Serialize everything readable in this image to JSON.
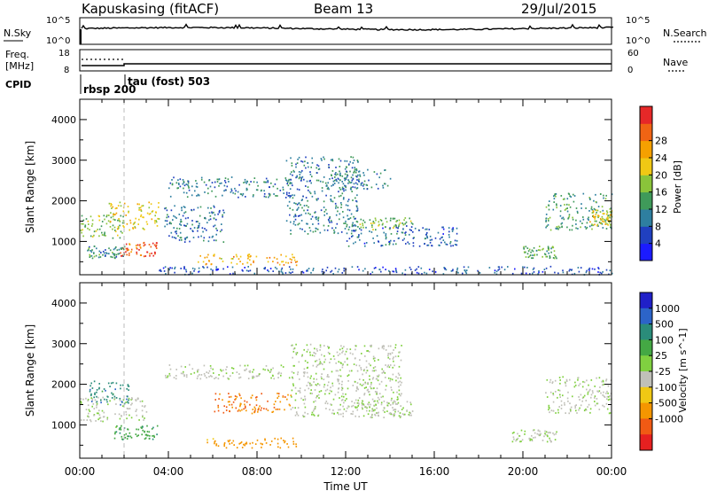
{
  "header": {
    "station": "Kapuskasing (fitACF)",
    "beam": "Beam 13",
    "date": "29/Jul/2015"
  },
  "left_labels": {
    "nsky": "N.Sky",
    "freq": "Freq.",
    "freq_unit": "[MHz]",
    "cpid": "CPID"
  },
  "right_labels": {
    "nsearch": "N.Search",
    "nave": "Nave"
  },
  "nsky_axis": {
    "top": "10^5",
    "bottom": "10^0"
  },
  "nsearch_axis": {
    "top": "10^5",
    "bottom": "10^0"
  },
  "freq_axis": {
    "top": "18",
    "bottom": "8"
  },
  "nave_axis": {
    "top": "60",
    "bottom": "0"
  },
  "cpid_labels": {
    "first": "rbsp 200",
    "second": "tau (fost) 503"
  },
  "x_axis": {
    "label": "Time UT",
    "ticks": [
      "00:00",
      "04:00",
      "08:00",
      "12:00",
      "16:00",
      "20:00",
      "00:00"
    ]
  },
  "power_panel": {
    "ylabel": "Slant Range [km]",
    "yticks": [
      "1000",
      "2000",
      "3000",
      "4000"
    ],
    "colorbar_label": "Power [dB]",
    "colorbar_ticks": [
      "4",
      "8",
      "12",
      "16",
      "20",
      "24",
      "28"
    ],
    "colorbar_colors": [
      "#1b1bff",
      "#2040c0",
      "#2e7fa0",
      "#3f9a5a",
      "#8ac43a",
      "#f0c814",
      "#f5a000",
      "#f06414",
      "#e62828"
    ]
  },
  "velocity_panel": {
    "ylabel": "Slant Range [km]",
    "yticks": [
      "1000",
      "2000",
      "3000",
      "4000"
    ],
    "colorbar_label": "Velocity [m s^-1]",
    "colorbar_ticks": [
      "1000",
      "500",
      "100",
      "25",
      "-25",
      "-100",
      "-500",
      "-1000"
    ],
    "colorbar_colors": [
      "#2020c8",
      "#2c64c8",
      "#2a8c7a",
      "#44a844",
      "#80d040",
      "#c0c0b8",
      "#f0c814",
      "#f59600",
      "#f05a14",
      "#e62020"
    ]
  },
  "chart_data": [
    {
      "type": "heatmap",
      "title": "Power [dB]",
      "x": "time UT (hours)",
      "y": "slant range (km)",
      "ylim": [
        180,
        4500
      ],
      "xlim": [
        0,
        24
      ],
      "cbar_range": [
        0,
        30
      ],
      "regions": [
        {
          "t0": 0.0,
          "t1": 2.0,
          "r0": 1100,
          "r1": 1700,
          "value": 14
        },
        {
          "t0": 1.3,
          "t1": 3.6,
          "r0": 1300,
          "r1": 2000,
          "value": 18
        },
        {
          "t0": 1.8,
          "t1": 3.5,
          "r0": 650,
          "r1": 1000,
          "value": 26
        },
        {
          "t0": 0.3,
          "t1": 2.0,
          "r0": 600,
          "r1": 900,
          "value": 10
        },
        {
          "t0": 3.8,
          "t1": 6.5,
          "r0": 1000,
          "r1": 1900,
          "value": 8
        },
        {
          "t0": 4.0,
          "t1": 9.5,
          "r0": 2100,
          "r1": 2600,
          "value": 9
        },
        {
          "t0": 5.3,
          "t1": 9.8,
          "r0": 430,
          "r1": 700,
          "value": 20
        },
        {
          "t0": 3.5,
          "t1": 24,
          "r0": 200,
          "r1": 400,
          "value": 6
        },
        {
          "t0": 9.3,
          "t1": 12.6,
          "r0": 1200,
          "r1": 3100,
          "value": 9
        },
        {
          "t0": 11.3,
          "t1": 14.0,
          "r0": 2300,
          "r1": 2800,
          "value": 9
        },
        {
          "t0": 12.5,
          "t1": 15.0,
          "r0": 1300,
          "r1": 1600,
          "value": 14
        },
        {
          "t0": 12.0,
          "t1": 17.0,
          "r0": 900,
          "r1": 1400,
          "value": 7
        },
        {
          "t0": 20.0,
          "t1": 21.5,
          "r0": 600,
          "r1": 900,
          "value": 13
        },
        {
          "t0": 21.0,
          "t1": 24.0,
          "r0": 1300,
          "r1": 2200,
          "value": 11
        },
        {
          "t0": 23.0,
          "t1": 24.0,
          "r0": 1400,
          "r1": 1800,
          "value": 17
        }
      ]
    },
    {
      "type": "heatmap",
      "title": "Velocity [m s^-1]",
      "x": "time UT (hours)",
      "y": "slant range (km)",
      "ylim": [
        180,
        4500
      ],
      "xlim": [
        0,
        24
      ],
      "regions": [
        {
          "t0": 0.0,
          "t1": 3.0,
          "r0": 1100,
          "r1": 1700,
          "value": 0
        },
        {
          "t0": 0.4,
          "t1": 2.2,
          "r0": 1500,
          "r1": 2100,
          "value": 80
        },
        {
          "t0": 1.5,
          "t1": 3.5,
          "r0": 650,
          "r1": 1000,
          "value": 40
        },
        {
          "t0": 3.8,
          "t1": 9.5,
          "r0": 2150,
          "r1": 2500,
          "value": 0
        },
        {
          "t0": 5.5,
          "t1": 9.8,
          "r0": 450,
          "r1": 700,
          "value": -150
        },
        {
          "t0": 6.0,
          "t1": 9.5,
          "r0": 1300,
          "r1": 1800,
          "value": -300
        },
        {
          "t0": 9.5,
          "t1": 14.5,
          "r0": 1200,
          "r1": 3000,
          "value": 0
        },
        {
          "t0": 12.5,
          "t1": 15.0,
          "r0": 1250,
          "r1": 1600,
          "value": 0
        },
        {
          "t0": 19.5,
          "t1": 21.5,
          "r0": 600,
          "r1": 900,
          "value": 0
        },
        {
          "t0": 21.0,
          "t1": 24.0,
          "r0": 1300,
          "r1": 2200,
          "value": 0
        }
      ]
    }
  ]
}
